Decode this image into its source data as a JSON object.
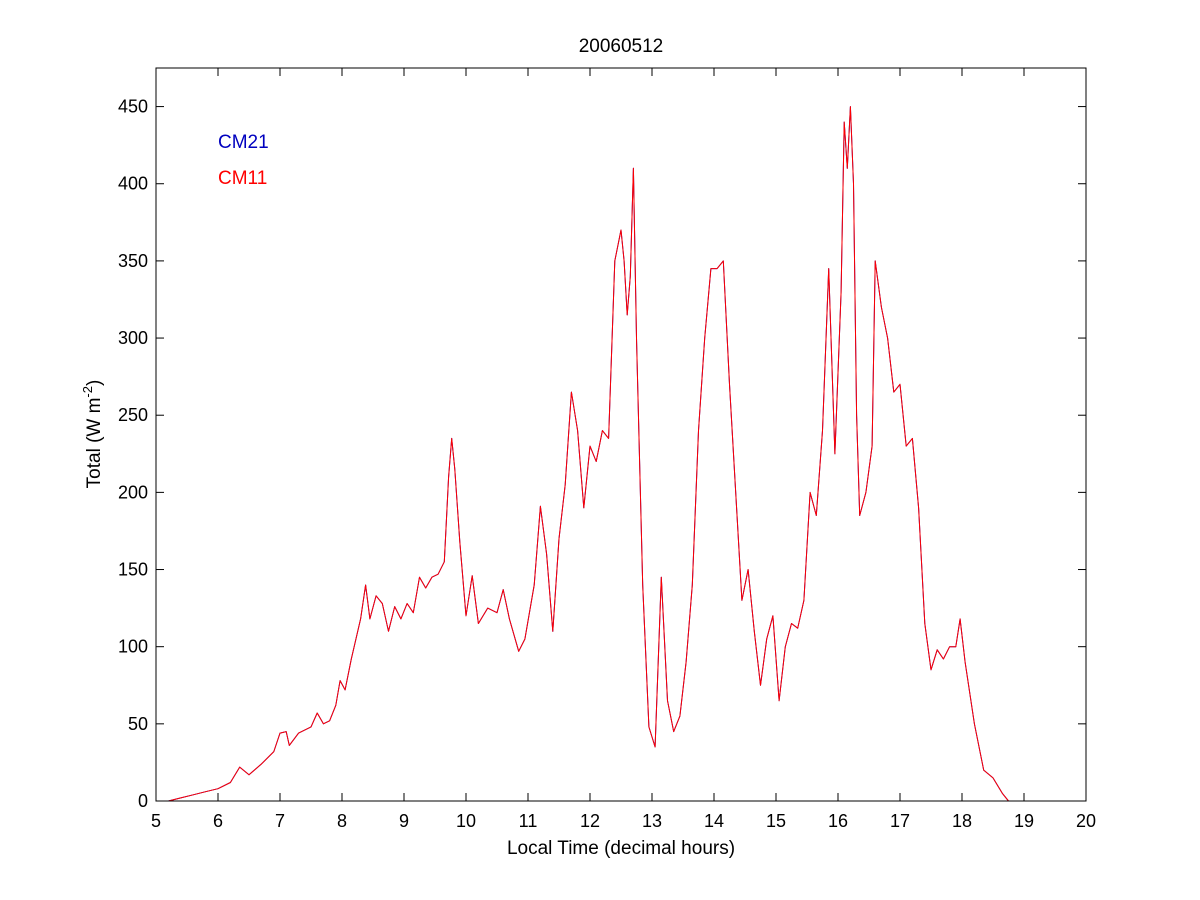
{
  "chart_data": {
    "type": "line",
    "title": "20060512",
    "xlabel": "Local Time (decimal hours)",
    "ylabel": {
      "prefix": "Total (W m",
      "sup": "-2",
      "suffix": ")"
    },
    "xlim": [
      5,
      20
    ],
    "ylim": [
      0,
      475
    ],
    "xticks": [
      5,
      6,
      7,
      8,
      9,
      10,
      11,
      12,
      13,
      14,
      15,
      16,
      17,
      18,
      19,
      20
    ],
    "yticks": [
      0,
      50,
      100,
      150,
      200,
      250,
      300,
      350,
      400,
      450
    ],
    "grid": false,
    "legend_position": "top-left",
    "x": [
      5.2,
      5.4,
      5.6,
      5.8,
      6.0,
      6.2,
      6.35,
      6.5,
      6.7,
      6.9,
      7.0,
      7.1,
      7.15,
      7.3,
      7.5,
      7.6,
      7.7,
      7.8,
      7.9,
      7.97,
      8.05,
      8.15,
      8.3,
      8.38,
      8.45,
      8.55,
      8.65,
      8.75,
      8.85,
      8.95,
      9.05,
      9.15,
      9.25,
      9.35,
      9.45,
      9.55,
      9.65,
      9.72,
      9.77,
      9.82,
      9.9,
      10.0,
      10.1,
      10.2,
      10.35,
      10.5,
      10.6,
      10.7,
      10.85,
      10.95,
      11.1,
      11.2,
      11.3,
      11.4,
      11.5,
      11.6,
      11.7,
      11.8,
      11.9,
      12.0,
      12.1,
      12.2,
      12.3,
      12.4,
      12.5,
      12.55,
      12.6,
      12.65,
      12.7,
      12.75,
      12.85,
      12.95,
      13.05,
      13.15,
      13.25,
      13.35,
      13.45,
      13.55,
      13.65,
      13.75,
      13.85,
      13.95,
      14.05,
      14.15,
      14.25,
      14.35,
      14.45,
      14.55,
      14.65,
      14.75,
      14.85,
      14.95,
      15.05,
      15.15,
      15.25,
      15.35,
      15.45,
      15.55,
      15.65,
      15.75,
      15.85,
      15.95,
      16.05,
      16.1,
      16.15,
      16.2,
      16.25,
      16.3,
      16.35,
      16.45,
      16.55,
      16.6,
      16.7,
      16.8,
      16.9,
      17.0,
      17.1,
      17.2,
      17.3,
      17.4,
      17.5,
      17.6,
      17.7,
      17.8,
      17.9,
      17.97,
      18.05,
      18.2,
      18.35,
      18.5,
      18.65,
      18.75
    ],
    "series": [
      {
        "name": "CM21",
        "color": "#0000bf",
        "values": [
          0,
          2,
          4,
          6,
          8,
          12,
          22,
          17,
          24,
          32,
          44,
          45,
          36,
          44,
          48,
          57,
          50,
          52,
          62,
          78,
          72,
          92,
          118,
          140,
          118,
          133,
          128,
          110,
          126,
          118,
          128,
          122,
          145,
          138,
          145,
          147,
          155,
          210,
          235,
          215,
          168,
          120,
          146,
          115,
          125,
          122,
          137,
          118,
          97,
          105,
          140,
          191,
          160,
          110,
          170,
          205,
          265,
          240,
          190,
          230,
          220,
          240,
          235,
          350,
          370,
          350,
          315,
          340,
          410,
          300,
          140,
          48,
          35,
          145,
          65,
          45,
          55,
          90,
          140,
          240,
          300,
          345,
          345,
          350,
          270,
          200,
          130,
          150,
          110,
          75,
          105,
          120,
          65,
          100,
          115,
          112,
          130,
          200,
          185,
          240,
          345,
          225,
          330,
          440,
          410,
          450,
          400,
          250,
          185,
          200,
          230,
          350,
          320,
          300,
          265,
          270,
          230,
          235,
          190,
          115,
          85,
          98,
          92,
          100,
          100,
          118,
          90,
          50,
          20,
          15,
          5,
          0
        ]
      },
      {
        "name": "CM11",
        "color": "#ff0000",
        "values": [
          0,
          2,
          4,
          6,
          8,
          12,
          22,
          17,
          24,
          32,
          44,
          45,
          36,
          44,
          48,
          57,
          50,
          52,
          62,
          78,
          72,
          92,
          118,
          140,
          118,
          133,
          128,
          110,
          126,
          118,
          128,
          122,
          145,
          138,
          145,
          147,
          155,
          210,
          235,
          215,
          168,
          120,
          146,
          115,
          125,
          122,
          137,
          118,
          97,
          105,
          140,
          191,
          160,
          110,
          170,
          205,
          265,
          240,
          190,
          230,
          220,
          240,
          235,
          350,
          370,
          350,
          315,
          340,
          410,
          300,
          140,
          48,
          35,
          145,
          65,
          45,
          55,
          90,
          140,
          240,
          300,
          345,
          345,
          350,
          270,
          200,
          130,
          150,
          110,
          75,
          105,
          120,
          65,
          100,
          115,
          112,
          130,
          200,
          185,
          240,
          345,
          225,
          330,
          440,
          410,
          450,
          400,
          250,
          185,
          200,
          230,
          350,
          320,
          300,
          265,
          270,
          230,
          235,
          190,
          115,
          85,
          98,
          92,
          100,
          100,
          118,
          90,
          50,
          20,
          15,
          5,
          0
        ]
      }
    ]
  }
}
